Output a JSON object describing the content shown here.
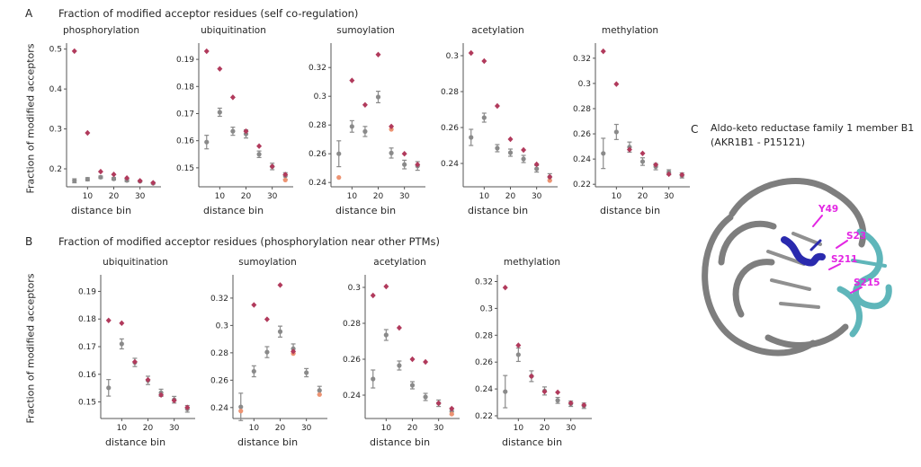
{
  "figure": {
    "panelA": {
      "label": "A",
      "title": "Fraction of modified acceptor residues (self co-regulation)",
      "ylabel": "Fraction of modified acceptors",
      "xlabel": "distance bin"
    },
    "panelB": {
      "label": "B",
      "title": "Fraction of modified acceptor residues (phosphorylation near other PTMs)",
      "ylabel": "Fraction of modified acceptors",
      "xlabel": "distance bin"
    },
    "panelC": {
      "label": "C",
      "title_line1": "Aldo-keto reductase family 1 member B1",
      "title_line2": "(AKR1B1 - P15121)",
      "residues": [
        "Y49",
        "S23",
        "S211",
        "S215"
      ]
    }
  },
  "colors": {
    "red": "#b13a5c",
    "gray": "#8a8a8a",
    "orange": "#ed9372",
    "magenta": "#e326e3",
    "blue": "#2a2aae",
    "cyan": "#5fb6ba",
    "ribbon_gray": "#7e7e7e"
  },
  "chart_data": [
    {
      "panel": "A",
      "type": "scatter",
      "title": "phosphorylation",
      "xlabel": "distance bin",
      "x": [
        5,
        10,
        15,
        20,
        25,
        30,
        35
      ],
      "xticks": [
        10,
        20,
        30
      ],
      "yticks": [
        "0.2",
        "0.3",
        "0.4",
        "0.5"
      ],
      "ylim": [
        0.155,
        0.515
      ],
      "series": [
        {
          "name": "gray",
          "color": "#8a8a8a",
          "marker": "circle",
          "values": [
            0.17,
            0.174,
            0.179,
            0.175,
            0.171,
            0.169,
            0.164
          ],
          "errors": [
            0.005,
            0.004,
            0.003,
            0.003,
            0.003,
            0.002,
            0.002
          ]
        },
        {
          "name": "red",
          "color": "#b13a5c",
          "marker": "diamond",
          "values": [
            0.495,
            0.29,
            0.193,
            0.186,
            0.177,
            0.17,
            0.165
          ]
        }
      ]
    },
    {
      "panel": "A",
      "type": "scatter",
      "title": "ubiquitination",
      "xlabel": "distance bin",
      "x": [
        5,
        10,
        15,
        20,
        25,
        30,
        35
      ],
      "xticks": [
        10,
        20,
        30
      ],
      "yticks": [
        "0.15",
        "0.16",
        "0.17",
        "0.18",
        "0.19"
      ],
      "ylim": [
        0.143,
        0.196
      ],
      "series": [
        {
          "name": "gray",
          "color": "#8a8a8a",
          "marker": "circle",
          "values": [
            0.1595,
            0.1705,
            0.1635,
            0.1625,
            0.155,
            0.1505,
            0.147
          ],
          "errors": [
            0.0025,
            0.0015,
            0.0015,
            0.0015,
            0.0012,
            0.0012,
            0.0012
          ]
        },
        {
          "name": "orange",
          "color": "#ed9372",
          "marker": "circle",
          "values": [
            null,
            null,
            null,
            null,
            null,
            null,
            0.1455
          ]
        },
        {
          "name": "red",
          "color": "#b13a5c",
          "marker": "diamond",
          "values": [
            0.193,
            0.1865,
            0.176,
            0.1635,
            0.158,
            0.1505,
            0.1475
          ]
        }
      ]
    },
    {
      "panel": "A",
      "type": "scatter",
      "title": "sumoylation",
      "xlabel": "distance bin",
      "x": [
        5,
        10,
        15,
        20,
        25,
        30,
        35
      ],
      "xticks": [
        10,
        20,
        30
      ],
      "yticks": [
        "0.24",
        "0.26",
        "0.28",
        "0.3",
        "0.32"
      ],
      "ylim": [
        0.237,
        0.337
      ],
      "series": [
        {
          "name": "gray",
          "color": "#8a8a8a",
          "marker": "circle",
          "values": [
            0.26,
            0.279,
            0.2755,
            0.2995,
            0.2605,
            0.2525,
            0.2515
          ],
          "errors": [
            0.009,
            0.004,
            0.0035,
            0.004,
            0.0035,
            0.003,
            0.003
          ]
        },
        {
          "name": "orange",
          "color": "#ed9372",
          "marker": "circle",
          "values": [
            0.2435,
            null,
            null,
            null,
            0.277,
            null,
            null
          ]
        },
        {
          "name": "red",
          "color": "#b13a5c",
          "marker": "diamond",
          "values": [
            null,
            0.311,
            0.294,
            0.329,
            0.279,
            0.26,
            0.2525
          ]
        }
      ]
    },
    {
      "panel": "A",
      "type": "scatter",
      "title": "acetylation",
      "xlabel": "distance bin",
      "x": [
        5,
        10,
        15,
        20,
        25,
        30,
        35
      ],
      "xticks": [
        10,
        20,
        30
      ],
      "yticks": [
        "0.24",
        "0.26",
        "0.28",
        "0.3"
      ],
      "ylim": [
        0.227,
        0.307
      ],
      "series": [
        {
          "name": "gray",
          "color": "#8a8a8a",
          "marker": "circle",
          "values": [
            0.2545,
            0.2655,
            0.2485,
            0.246,
            0.2425,
            0.237,
            0.2325
          ],
          "errors": [
            0.0045,
            0.0025,
            0.002,
            0.002,
            0.002,
            0.0018,
            0.0018
          ]
        },
        {
          "name": "orange",
          "color": "#ed9372",
          "marker": "circle",
          "values": [
            null,
            null,
            null,
            null,
            null,
            null,
            0.2305
          ]
        },
        {
          "name": "red",
          "color": "#b13a5c",
          "marker": "diamond",
          "values": [
            0.3015,
            0.297,
            0.272,
            0.2535,
            0.2475,
            0.2395,
            0.2325
          ]
        }
      ]
    },
    {
      "panel": "A",
      "type": "scatter",
      "title": "methylation",
      "xlabel": "distance bin",
      "x": [
        5,
        10,
        15,
        20,
        25,
        30,
        35
      ],
      "xticks": [
        10,
        20,
        30
      ],
      "yticks": [
        "0.22",
        "0.24",
        "0.26",
        "0.28",
        "0.3",
        "0.32"
      ],
      "ylim": [
        0.218,
        0.332
      ],
      "series": [
        {
          "name": "gray",
          "color": "#8a8a8a",
          "marker": "circle",
          "values": [
            0.2445,
            0.2615,
            0.2495,
            0.238,
            0.234,
            0.2295,
            0.227
          ],
          "errors": [
            0.012,
            0.006,
            0.004,
            0.003,
            0.0025,
            0.002,
            0.002
          ]
        },
        {
          "name": "red",
          "color": "#b13a5c",
          "marker": "diamond",
          "values": [
            0.3255,
            0.2995,
            0.2475,
            0.2445,
            0.2355,
            0.228,
            0.2275
          ]
        }
      ]
    },
    {
      "panel": "B",
      "type": "scatter",
      "title": "ubiquitination",
      "xlabel": "distance bin",
      "x": [
        5,
        10,
        15,
        20,
        25,
        30,
        35
      ],
      "xticks": [
        10,
        20,
        30
      ],
      "yticks": [
        "0.15",
        "0.16",
        "0.17",
        "0.18",
        "0.19"
      ],
      "ylim": [
        0.144,
        0.196
      ],
      "series": [
        {
          "name": "gray",
          "color": "#8a8a8a",
          "marker": "circle",
          "values": [
            0.1551,
            0.171,
            0.1643,
            0.1578,
            0.1533,
            0.1508,
            0.1475
          ],
          "errors": [
            0.003,
            0.0018,
            0.0015,
            0.0015,
            0.0013,
            0.0012,
            0.0012
          ]
        },
        {
          "name": "red",
          "color": "#b13a5c",
          "marker": "diamond",
          "values": [
            0.1795,
            0.1785,
            0.1645,
            0.158,
            0.1525,
            0.1505,
            0.148
          ]
        }
      ]
    },
    {
      "panel": "B",
      "type": "scatter",
      "title": "sumoylation",
      "xlabel": "distance bin",
      "x": [
        5,
        10,
        15,
        20,
        25,
        30,
        35
      ],
      "xticks": [
        10,
        20,
        30
      ],
      "yticks": [
        "0.24",
        "0.26",
        "0.28",
        "0.3",
        "0.32"
      ],
      "ylim": [
        0.232,
        0.337
      ],
      "series": [
        {
          "name": "gray",
          "color": "#8a8a8a",
          "marker": "circle",
          "values": [
            0.2405,
            0.2665,
            0.2805,
            0.2955,
            0.283,
            0.2655,
            0.2525
          ],
          "errors": [
            0.01,
            0.004,
            0.004,
            0.004,
            0.0035,
            0.003,
            0.003
          ]
        },
        {
          "name": "orange",
          "color": "#ed9372",
          "marker": "circle",
          "values": [
            0.2375,
            null,
            null,
            null,
            0.2795,
            null,
            0.2495
          ]
        },
        {
          "name": "red",
          "color": "#b13a5c",
          "marker": "diamond",
          "values": [
            null,
            0.315,
            0.3045,
            0.3295,
            0.281,
            null,
            null
          ]
        }
      ]
    },
    {
      "panel": "B",
      "type": "scatter",
      "title": "acetylation",
      "xlabel": "distance bin",
      "x": [
        5,
        10,
        15,
        20,
        25,
        30,
        35
      ],
      "xticks": [
        10,
        20,
        30
      ],
      "yticks": [
        "0.24",
        "0.26",
        "0.28",
        "0.3"
      ],
      "ylim": [
        0.227,
        0.307
      ],
      "series": [
        {
          "name": "gray",
          "color": "#8a8a8a",
          "marker": "circle",
          "values": [
            0.249,
            0.2735,
            0.2565,
            0.2455,
            0.239,
            0.2355,
            0.231
          ],
          "errors": [
            0.005,
            0.003,
            0.0025,
            0.002,
            0.002,
            0.0018,
            0.0018
          ]
        },
        {
          "name": "orange",
          "color": "#ed9372",
          "marker": "circle",
          "values": [
            null,
            null,
            null,
            null,
            null,
            null,
            0.2295
          ]
        },
        {
          "name": "red",
          "color": "#b13a5c",
          "marker": "diamond",
          "values": [
            0.2955,
            0.3005,
            0.2775,
            0.26,
            0.2585,
            0.2355,
            0.2325
          ]
        }
      ]
    },
    {
      "panel": "B",
      "type": "scatter",
      "title": "methylation",
      "xlabel": "distance bin",
      "x": [
        5,
        10,
        15,
        20,
        25,
        30,
        35
      ],
      "xticks": [
        10,
        20,
        30
      ],
      "yticks": [
        "0.22",
        "0.24",
        "0.26",
        "0.28",
        "0.3",
        "0.32"
      ],
      "ylim": [
        0.218,
        0.325
      ],
      "series": [
        {
          "name": "gray",
          "color": "#8a8a8a",
          "marker": "circle",
          "values": [
            0.238,
            0.2655,
            0.2495,
            0.2385,
            0.2315,
            0.229,
            0.2275
          ],
          "errors": [
            0.012,
            0.005,
            0.004,
            0.003,
            0.0022,
            0.002,
            0.002
          ]
        },
        {
          "name": "red",
          "color": "#b13a5c",
          "marker": "diamond",
          "values": [
            0.3155,
            0.2725,
            0.2495,
            0.238,
            0.2375,
            0.2295,
            0.228
          ]
        }
      ]
    }
  ]
}
